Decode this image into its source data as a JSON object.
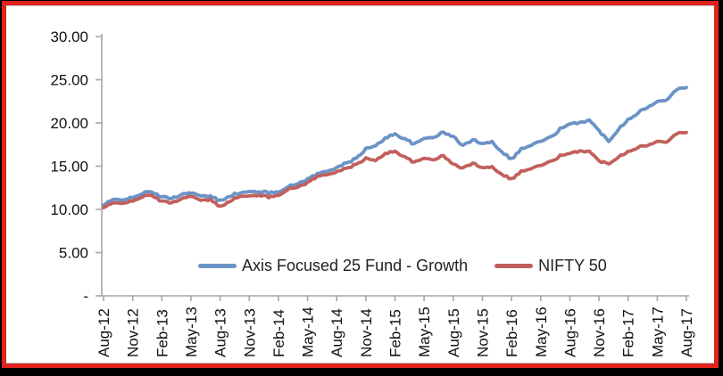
{
  "frame": {
    "border_color": "#df231f",
    "outer_background": "#000000",
    "panel_background": "#ffffff",
    "axis_color": "#a6a6a6"
  },
  "legend": {
    "position": "inside-bottom-center"
  },
  "chart_data": {
    "type": "line",
    "title": "",
    "xlabel": "",
    "ylabel": "",
    "x_start": "Aug-12",
    "x_end": "Aug-17",
    "x_interval": "monthly",
    "x_tick_labels": [
      "Aug-12",
      "Nov-12",
      "Feb-13",
      "May-13",
      "Aug-13",
      "Nov-13",
      "Feb-14",
      "May-14",
      "Aug-14",
      "Nov-14",
      "Feb-15",
      "May-15",
      "Aug-15",
      "Nov-15",
      "Feb-16",
      "May-16",
      "Aug-16",
      "Nov-16",
      "Feb-17",
      "May-17",
      "Aug-17"
    ],
    "y_tick_labels": [
      "30.00",
      "25.00",
      "20.00",
      "15.00",
      "10.00",
      "5.00",
      "-"
    ],
    "y_tick_values": [
      30,
      25,
      20,
      15,
      10,
      5,
      0
    ],
    "ylim": [
      0,
      30
    ],
    "grid": "off",
    "axis_color": "#a6a6a6",
    "legend_position": "inside-bottom-center",
    "series": [
      {
        "name": "Axis Focused 25 Fund - Growth",
        "color": "#6b93c6",
        "values": [
          10.5,
          11.1,
          11.2,
          11.3,
          11.9,
          12.0,
          11.4,
          11.3,
          11.7,
          12.0,
          11.5,
          11.5,
          11.0,
          11.6,
          11.9,
          12.0,
          12.1,
          11.9,
          12.1,
          12.6,
          13.0,
          13.5,
          14.1,
          14.4,
          14.9,
          15.3,
          15.9,
          17.0,
          17.3,
          18.3,
          18.7,
          18.2,
          17.5,
          18.2,
          18.4,
          18.9,
          18.4,
          17.4,
          18.0,
          17.7,
          17.8,
          16.7,
          15.8,
          17.0,
          17.4,
          17.9,
          18.3,
          19.3,
          19.8,
          20.1,
          20.3,
          19.1,
          17.9,
          19.3,
          20.4,
          21.2,
          21.8,
          22.4,
          22.8,
          23.9,
          24.1
        ]
      },
      {
        "name": "NIFTY 50",
        "color": "#c2605c",
        "values": [
          10.2,
          10.7,
          10.8,
          10.9,
          11.5,
          11.6,
          10.9,
          10.8,
          11.2,
          11.6,
          11.0,
          11.1,
          10.3,
          11.0,
          11.5,
          11.5,
          11.7,
          11.4,
          11.7,
          12.3,
          12.6,
          13.1,
          13.8,
          14.0,
          14.4,
          14.7,
          15.2,
          15.9,
          15.6,
          16.5,
          16.7,
          16.1,
          15.4,
          15.9,
          15.8,
          16.2,
          15.2,
          14.8,
          15.3,
          14.9,
          14.9,
          14.1,
          13.5,
          14.4,
          14.7,
          15.1,
          15.5,
          16.2,
          16.4,
          16.8,
          16.7,
          15.6,
          15.3,
          16.1,
          16.7,
          17.2,
          17.4,
          17.8,
          17.9,
          18.8,
          18.9
        ]
      }
    ]
  }
}
